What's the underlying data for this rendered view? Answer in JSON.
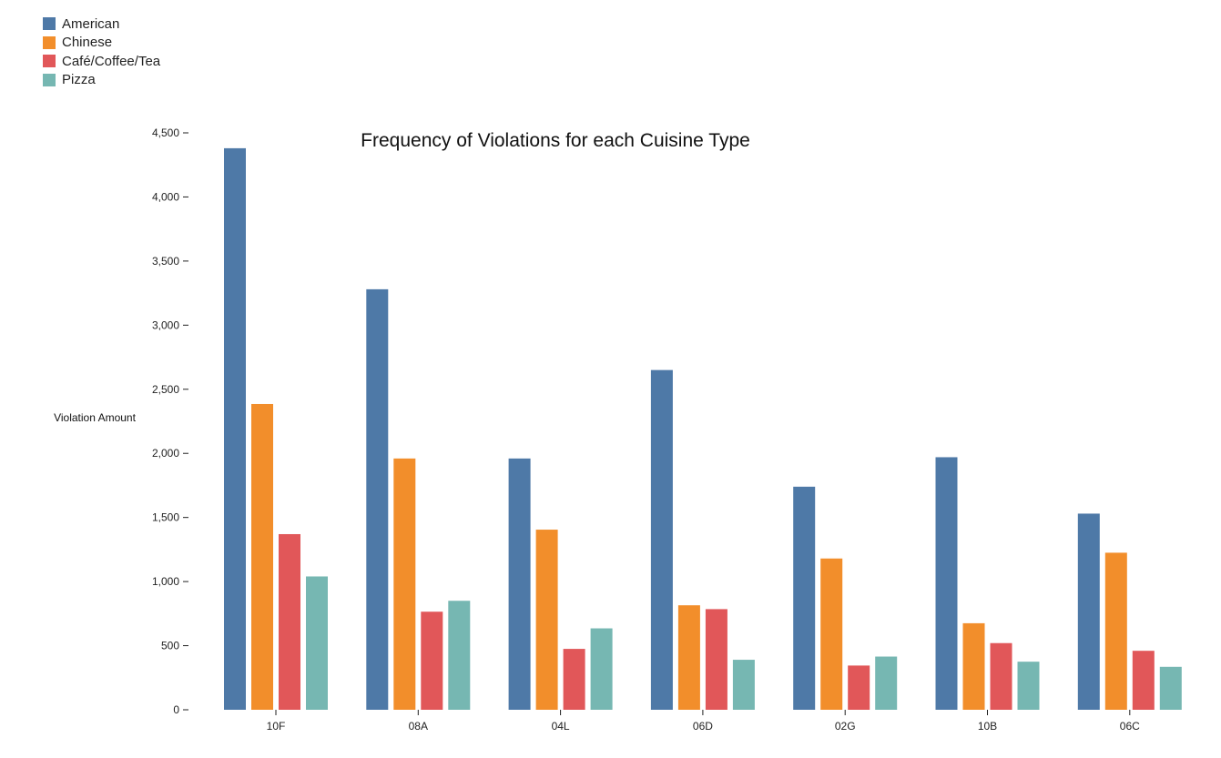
{
  "chart_data": {
    "type": "bar",
    "title": "Frequency of Violations for each Cuisine Type",
    "xlabel": "",
    "ylabel": "Violation Amount",
    "ylim": [
      0,
      4500
    ],
    "yticks": [
      "0",
      "500",
      "1,000",
      "1,500",
      "2,000",
      "2,500",
      "3,000",
      "3,500",
      "4,000",
      "4,500"
    ],
    "ytick_values": [
      0,
      500,
      1000,
      1500,
      2000,
      2500,
      3000,
      3500,
      4000,
      4500
    ],
    "categories": [
      "10F",
      "08A",
      "04L",
      "06D",
      "02G",
      "10B",
      "06C"
    ],
    "legend_position": "top-left",
    "grid": false,
    "series": [
      {
        "name": "American",
        "color": "#4e79a7",
        "values": [
          4380,
          3280,
          1960,
          2650,
          1740,
          1970,
          1530
        ]
      },
      {
        "name": "Chinese",
        "color": "#f28e2b",
        "values": [
          2385,
          1960,
          1405,
          815,
          1180,
          675,
          1225
        ]
      },
      {
        "name": "Café/Coffee/Tea",
        "color": "#e15759",
        "values": [
          1370,
          765,
          475,
          785,
          345,
          520,
          460
        ]
      },
      {
        "name": "Pizza",
        "color": "#76b7b2",
        "values": [
          1040,
          850,
          635,
          390,
          415,
          375,
          335
        ]
      }
    ]
  }
}
